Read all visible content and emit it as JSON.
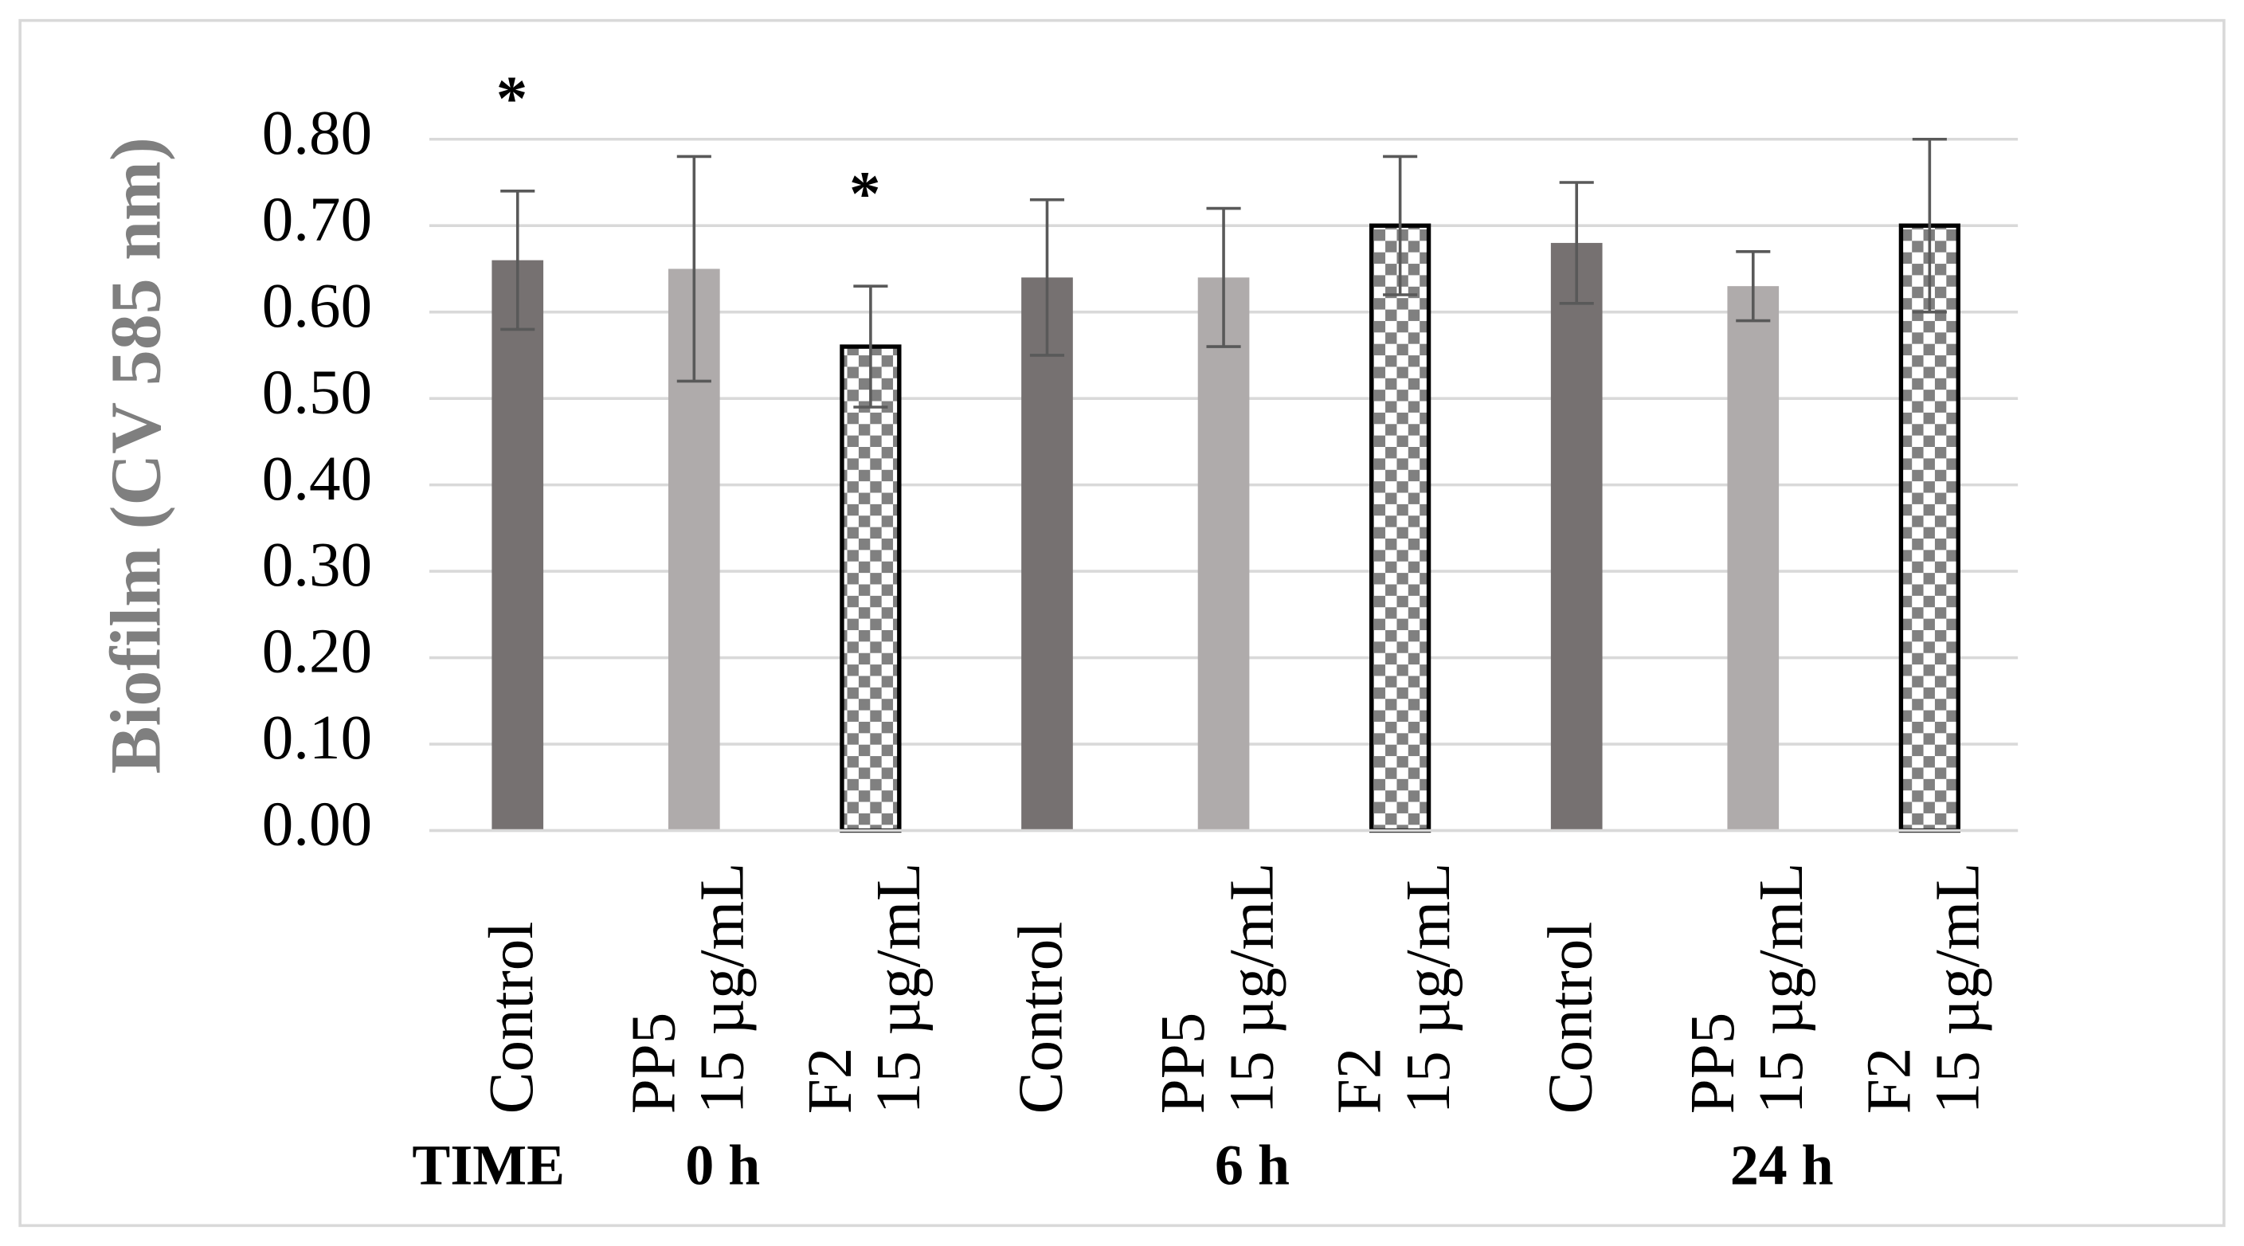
{
  "chart_data": {
    "type": "bar",
    "y_label": "Biofilm (CV 585 nm)",
    "group_title": "TIME",
    "categories": [
      "0 h",
      "6 h",
      "24 h"
    ],
    "ylim": [
      0,
      0.8
    ],
    "yticks": [
      {
        "value": 0,
        "label": "0.00"
      },
      {
        "value": 0.1,
        "label": "0.10"
      },
      {
        "value": 0.2,
        "label": "0.20"
      },
      {
        "value": 0.3,
        "label": "0.30"
      },
      {
        "value": 0.4,
        "label": "0.40"
      },
      {
        "value": 0.5,
        "label": "0.50"
      },
      {
        "value": 0.6,
        "label": "0.60"
      },
      {
        "value": 0.7,
        "label": "0.70"
      },
      {
        "value": 0.8,
        "label": "0.80"
      }
    ],
    "grid": true,
    "series": [
      {
        "name": [
          "Control"
        ],
        "color": "#767171",
        "values": [
          0.66,
          0.64,
          0.68
        ],
        "errors": [
          0.08,
          0.09,
          0.07
        ],
        "annotations": [
          "*",
          null,
          null
        ]
      },
      {
        "name": [
          "PP5",
          "15 µg/mL"
        ],
        "color": "#afabab",
        "values": [
          0.65,
          0.64,
          0.63
        ],
        "errors": [
          0.13,
          0.08,
          0.04
        ],
        "annotations": [
          null,
          null,
          null
        ]
      },
      {
        "name": [
          "F2",
          "15 µg/mL"
        ],
        "color": "#808080",
        "pattern": "checker",
        "values": [
          0.56,
          0.7,
          0.7
        ],
        "errors": [
          0.07,
          0.08,
          0.1
        ],
        "annotations": [
          "*",
          null,
          null
        ]
      }
    ]
  }
}
